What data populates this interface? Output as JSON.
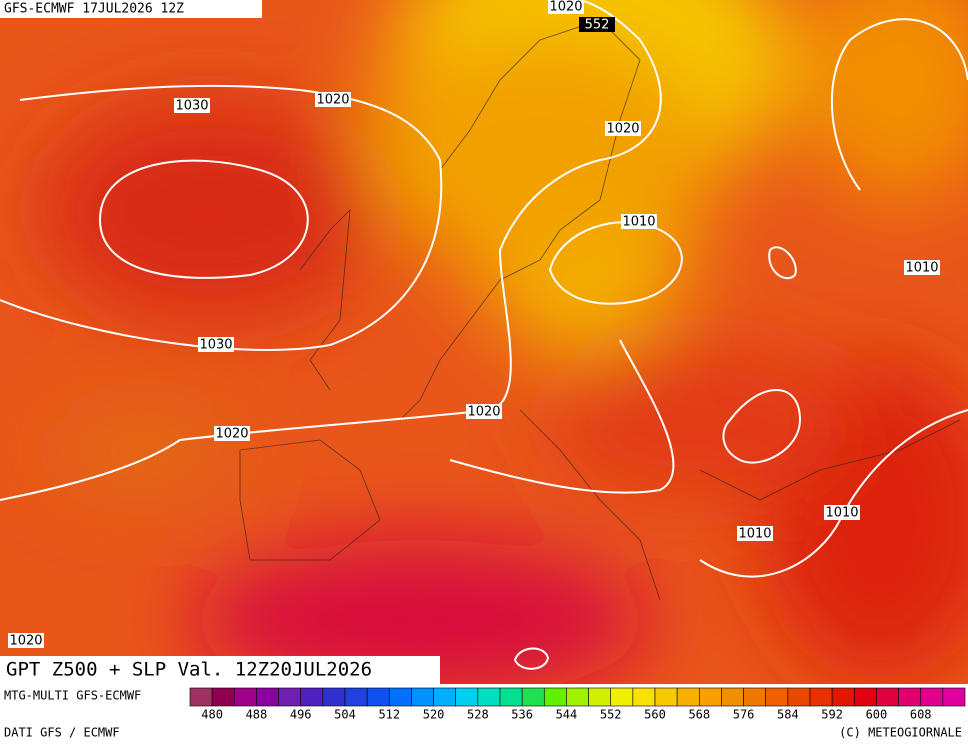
{
  "header": "GFS-ECMWF 17JUL2026 12Z",
  "contour_labels": [
    1020,
    552,
    1030,
    1020,
    1020,
    1010,
    1010,
    1030,
    1020,
    1020,
    1010,
    1010,
    1020
  ],
  "title": "GPT Z500 + SLP Val. 12Z20JUL2026",
  "footer": {
    "model": "MTG-MULTI GFS-ECMWF",
    "source": "DATI GFS / ECMWF",
    "credit": "(C) METEOGIORNALE"
  },
  "colorbar_ticks": [
    480,
    488,
    496,
    504,
    512,
    520,
    528,
    536,
    544,
    552,
    560,
    568,
    576,
    584,
    592,
    600,
    608
  ]
}
